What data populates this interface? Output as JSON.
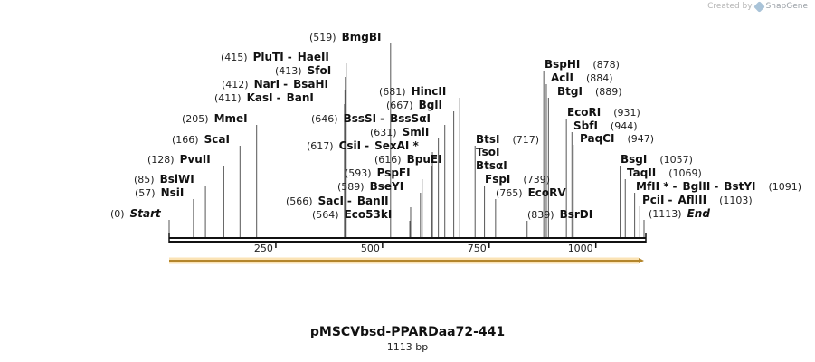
{
  "credit": {
    "prefix": "Created by",
    "brand": "SnapGene",
    "icon": "snapgene-logo-icon"
  },
  "plasmid": {
    "name": "pMSCVbsd-PPARDaa72-441",
    "length_label": "1113 bp"
  },
  "map": {
    "length": 1113,
    "ticks": [
      250,
      500,
      750,
      1000
    ],
    "feature_arrow": {
      "start": 1,
      "end": 1113,
      "color": "#f0c060",
      "direction": "forward"
    },
    "labels": [
      {
        "parts": [
          {
            "name": "BmgBI",
            "pos": 519
          }
        ]
      },
      {
        "parts": [
          {
            "name": "PluTI",
            "pos": 415
          },
          {
            "name": "HaeII"
          }
        ]
      },
      {
        "parts": [
          {
            "name": "SfoI",
            "pos": 413
          }
        ]
      },
      {
        "parts": [
          {
            "name": "NarI",
            "pos": 412
          },
          {
            "name": "BsaHI"
          }
        ]
      },
      {
        "parts": [
          {
            "name": "KasI",
            "pos": 411
          },
          {
            "name": "BanI"
          }
        ]
      },
      {
        "parts": [
          {
            "name": "MmeI",
            "pos": 205
          }
        ]
      },
      {
        "parts": [
          {
            "name": "ScaI",
            "pos": 166
          }
        ]
      },
      {
        "parts": [
          {
            "name": "PvuII",
            "pos": 128
          }
        ]
      },
      {
        "parts": [
          {
            "name": "BsiWI",
            "pos": 85
          }
        ]
      },
      {
        "parts": [
          {
            "name": "NsiI",
            "pos": 57
          }
        ]
      },
      {
        "parts": [
          {
            "name": "Start",
            "pos": 0
          }
        ]
      },
      {
        "parts": [
          {
            "name": "BssSI",
            "pos": 646
          },
          {
            "name": "BssSαI"
          }
        ]
      },
      {
        "parts": [
          {
            "name": "CsiI",
            "pos": 617
          },
          {
            "name": "SexAI *"
          }
        ]
      },
      {
        "parts": [
          {
            "name": "BseYI",
            "pos": 589
          }
        ]
      },
      {
        "parts": [
          {
            "name": "SacI",
            "pos": 566
          },
          {
            "name": "BanII"
          }
        ]
      },
      {
        "parts": [
          {
            "name": "Eco53kI",
            "pos": 564
          }
        ]
      },
      {
        "parts": [
          {
            "name": "HincII",
            "pos": 681
          }
        ]
      },
      {
        "parts": [
          {
            "name": "BglI",
            "pos": 667
          }
        ]
      },
      {
        "parts": [
          {
            "name": "SmlI",
            "pos": 631
          }
        ]
      },
      {
        "parts": [
          {
            "name": "BpuEI",
            "pos": 616
          }
        ]
      },
      {
        "parts": [
          {
            "name": "PspFI",
            "pos": 593
          }
        ]
      },
      {
        "parts": [
          {
            "name": "BtsI",
            "pos": 717
          }
        ]
      },
      {
        "parts": [
          {
            "name": "TsoI"
          }
        ]
      },
      {
        "parts": [
          {
            "name": "BtsαI"
          }
        ]
      },
      {
        "parts": [
          {
            "name": "FspI",
            "pos": 739
          }
        ]
      },
      {
        "parts": [
          {
            "name": "EcoRV",
            "pos": 765
          }
        ]
      },
      {
        "parts": [
          {
            "name": "BspHI",
            "pos": 878
          }
        ]
      },
      {
        "parts": [
          {
            "name": "AclI",
            "pos": 884
          }
        ]
      },
      {
        "parts": [
          {
            "name": "BtgI",
            "pos": 889
          }
        ]
      },
      {
        "parts": [
          {
            "name": "EcoRI",
            "pos": 931
          }
        ]
      },
      {
        "parts": [
          {
            "name": "SbfI",
            "pos": 944
          }
        ]
      },
      {
        "parts": [
          {
            "name": "PaqCI",
            "pos": 947
          }
        ]
      },
      {
        "parts": [
          {
            "name": "BsrDI",
            "pos": 839
          }
        ]
      },
      {
        "parts": [
          {
            "name": "BsgI",
            "pos": 1057
          }
        ]
      },
      {
        "parts": [
          {
            "name": "TaqII",
            "pos": 1069
          }
        ]
      },
      {
        "parts": [
          {
            "name": "MfII *"
          },
          {
            "name": "BglII"
          },
          {
            "name": "BstYI",
            "pos": 1091
          }
        ]
      },
      {
        "parts": [
          {
            "name": "PciI"
          },
          {
            "name": "AflIII",
            "pos": 1103
          }
        ]
      },
      {
        "parts": [
          {
            "name": "End",
            "pos": 1113
          }
        ]
      }
    ]
  }
}
